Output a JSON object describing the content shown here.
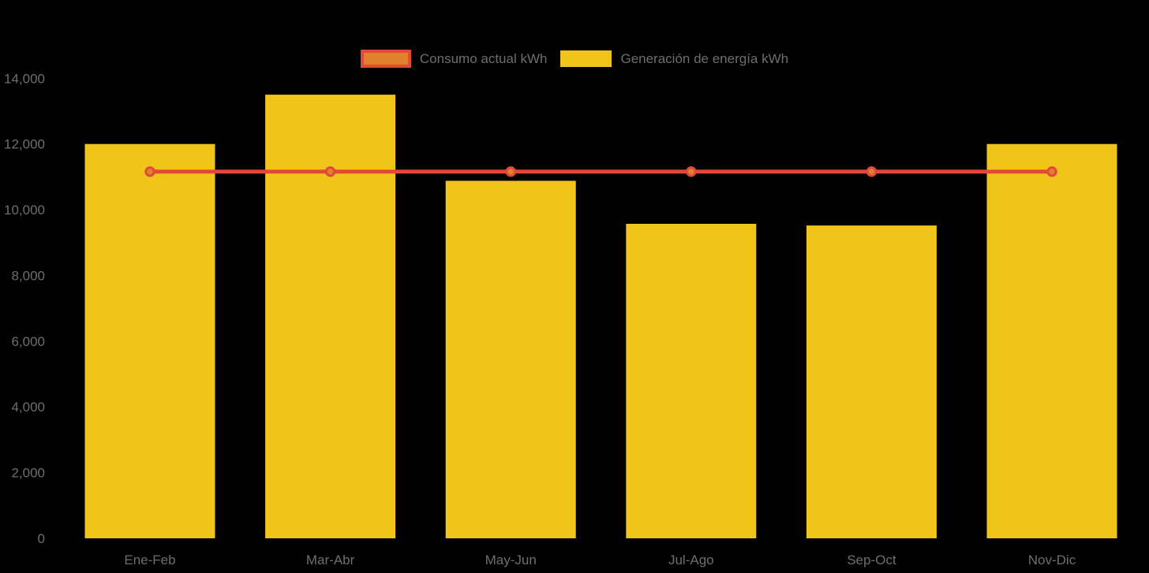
{
  "page": {
    "background_color": "#000000",
    "text_color": "#6E6E6E"
  },
  "legend": {
    "position": "top-center",
    "items": [
      {
        "label": "Consumo actual kWh",
        "swatch": "line-swatch",
        "fill": "#E0812C",
        "border": "#E2493B"
      },
      {
        "label": "Generación de energía kWh",
        "swatch": "bar-swatch",
        "fill": "#F0C419",
        "border": "#F0C419"
      }
    ]
  },
  "chart_data": {
    "type": "bar",
    "subtype": "bar+line-combo",
    "title": "",
    "xlabel": "",
    "ylabel": "",
    "categories": [
      "Ene-Feb",
      "Mar-Abr",
      "May-Jun",
      "Jul-Ago",
      "Sep-Oct",
      "Nov-Dic"
    ],
    "series": [
      {
        "name": "Generación de energía kWh",
        "type": "bar",
        "color": "#F0C419",
        "values": [
          12000,
          13500,
          10880,
          9570,
          9520,
          12000
        ]
      },
      {
        "name": "Consumo actual kWh",
        "type": "line",
        "color": "#E2493B",
        "marker_fill": "#E0812C",
        "marker_stroke": "#E2493B",
        "values": [
          11160,
          11160,
          11160,
          11160,
          11160,
          11160
        ]
      }
    ],
    "ylim": [
      0,
      14000
    ],
    "ytick_interval": 2000,
    "ytick_labels": [
      "0",
      "2,000",
      "4,000",
      "6,000",
      "8,000",
      "10,000",
      "12,000",
      "14,000"
    ],
    "grid": false,
    "axis_lines": false,
    "legend_position": "top-center",
    "axis_text_color": "#6E6E6E",
    "background": "#000000"
  }
}
